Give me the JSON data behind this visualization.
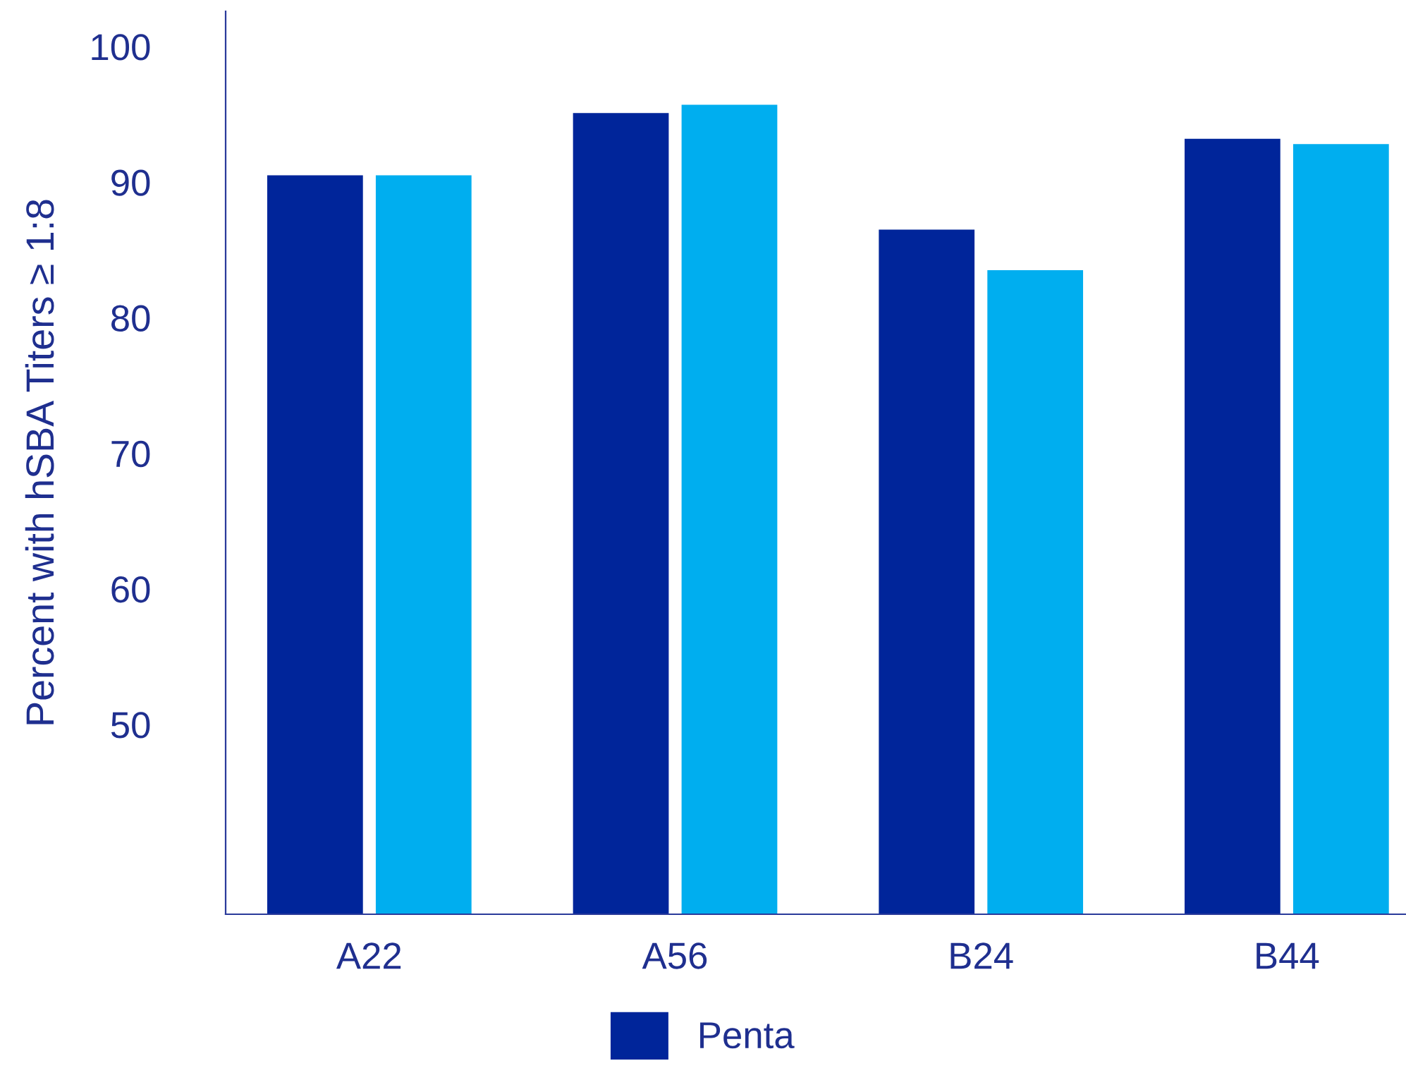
{
  "chart_data": {
    "type": "bar",
    "ylabel": "Percent with hSBA Titers ≥ 1:8",
    "categories": [
      "A22",
      "A56",
      "B24",
      "B44"
    ],
    "series": [
      {
        "name": "Penta",
        "color": "#00259a",
        "values": [
          90.5,
          95.1,
          86.5,
          93.2
        ]
      },
      {
        "color": "#00aeef",
        "values": [
          90.5,
          95.7,
          83.5,
          92.8
        ]
      }
    ],
    "ylim": [
      36,
      102.6
    ],
    "yticks": [
      50,
      60,
      70,
      80,
      90,
      100
    ],
    "grid": false,
    "legend": "bottom"
  }
}
